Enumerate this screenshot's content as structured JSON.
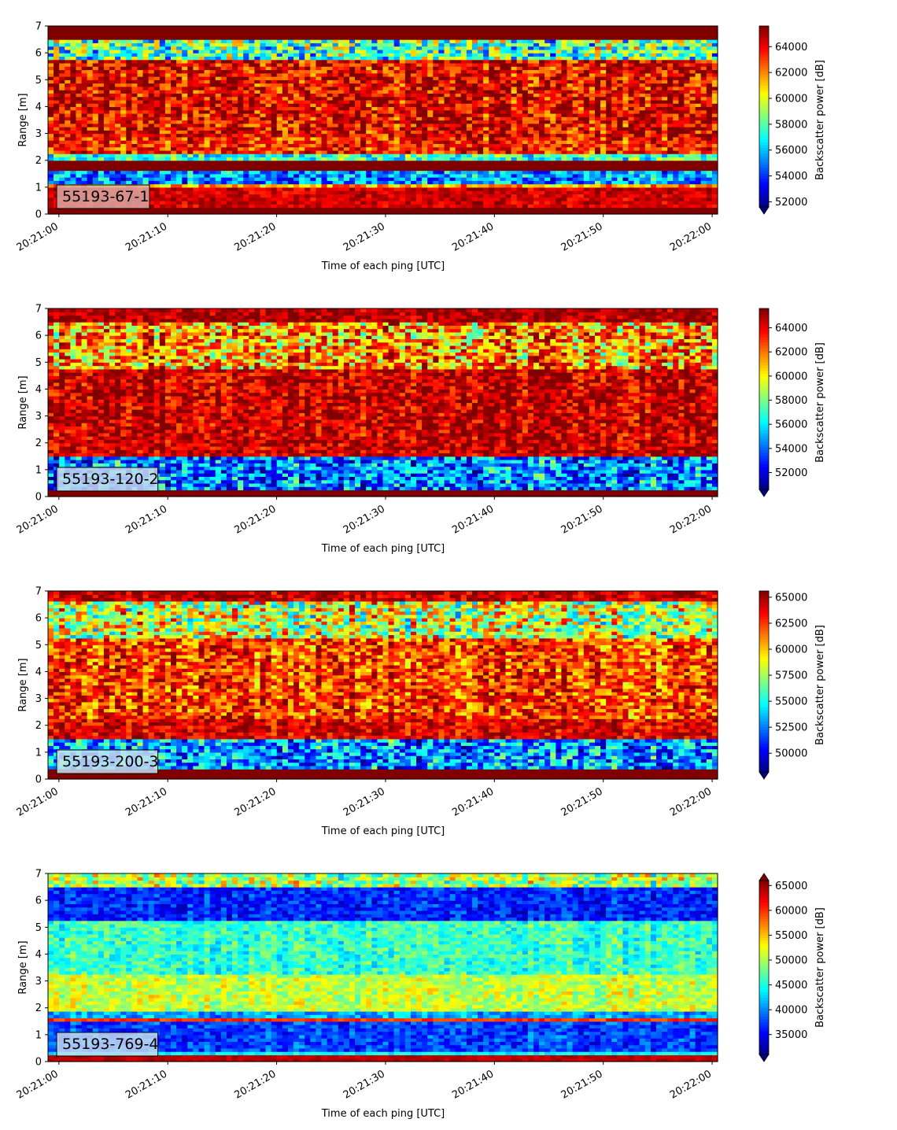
{
  "chart_data": [
    {
      "type": "heatmap",
      "id": "55193-67-1",
      "annotation": "55193-67-1",
      "xlabel": "Time of each ping [UTC]",
      "ylabel": "Range [m]",
      "colorbar_label": "Backscatter power [dB]",
      "x_ticks": [
        "20:21:00",
        "20:21:10",
        "20:21:20",
        "20:21:30",
        "20:21:40",
        "20:21:50",
        "20:22:00"
      ],
      "x_range_seconds": [
        -1,
        60.5
      ],
      "y_ticks": [
        0,
        1,
        2,
        3,
        4,
        5,
        6,
        7
      ],
      "ylim": [
        0,
        7
      ],
      "colorbar_ticks": [
        52000,
        54000,
        56000,
        58000,
        60000,
        62000,
        64000
      ],
      "clim": [
        51600,
        65600
      ],
      "colorbar_extend": "min",
      "annotation_bg": "#d9a8a3",
      "bands": [
        {
          "y": [
            0.0,
            0.25
          ],
          "value": 65600
        },
        {
          "y": [
            0.25,
            1.0
          ],
          "value": 64500,
          "jitter": 1500
        },
        {
          "y": [
            1.0,
            1.15
          ],
          "value": 61500,
          "jitter": 2500
        },
        {
          "y": [
            1.15,
            1.6
          ],
          "value": 55500,
          "jitter": 3500
        },
        {
          "y": [
            1.6,
            2.05
          ],
          "value": 65600
        },
        {
          "y": [
            2.05,
            2.2
          ],
          "value": 57500,
          "jitter": 3000
        },
        {
          "y": [
            2.2,
            2.9
          ],
          "value": 63500,
          "jitter": 3000
        },
        {
          "y": [
            2.9,
            5.8
          ],
          "value": 64200,
          "jitter": 3500
        },
        {
          "y": [
            5.8,
            6.5
          ],
          "value": 58000,
          "jitter": 5000
        },
        {
          "y": [
            6.5,
            7.0
          ],
          "value": 65600
        }
      ]
    },
    {
      "type": "heatmap",
      "id": "55193-120-2",
      "annotation": "55193-120-2",
      "xlabel": "Time of each ping [UTC]",
      "ylabel": "Range [m]",
      "colorbar_label": "Backscatter power [dB]",
      "x_ticks": [
        "20:21:00",
        "20:21:10",
        "20:21:20",
        "20:21:30",
        "20:21:40",
        "20:21:50",
        "20:22:00"
      ],
      "x_range_seconds": [
        -1,
        60.5
      ],
      "y_ticks": [
        0,
        1,
        2,
        3,
        4,
        5,
        6,
        7
      ],
      "ylim": [
        0,
        7
      ],
      "colorbar_ticks": [
        52000,
        54000,
        56000,
        58000,
        60000,
        62000,
        64000
      ],
      "clim": [
        50600,
        65600
      ],
      "colorbar_extend": "min",
      "annotation_bg": "#c9d8ef",
      "bands": [
        {
          "y": [
            0.0,
            0.2
          ],
          "value": 65600
        },
        {
          "y": [
            0.2,
            1.45
          ],
          "value": 54500,
          "jitter": 4500
        },
        {
          "y": [
            1.45,
            2.2
          ],
          "value": 64500,
          "jitter": 2500
        },
        {
          "y": [
            2.2,
            4.8
          ],
          "value": 64600,
          "jitter": 3000
        },
        {
          "y": [
            4.8,
            6.5
          ],
          "value": 61500,
          "jitter": 5500
        },
        {
          "y": [
            6.5,
            7.0
          ],
          "value": 65000,
          "jitter": 2000
        }
      ]
    },
    {
      "type": "heatmap",
      "id": "55193-200-3",
      "annotation": "55193-200-3",
      "xlabel": "Time of each ping [UTC]",
      "ylabel": "Range [m]",
      "colorbar_label": "Backscatter power [dB]",
      "x_ticks": [
        "20:21:00",
        "20:21:10",
        "20:21:20",
        "20:21:30",
        "20:21:40",
        "20:21:50",
        "20:22:00"
      ],
      "x_range_seconds": [
        -1,
        60.5
      ],
      "y_ticks": [
        0,
        1,
        2,
        3,
        4,
        5,
        6,
        7
      ],
      "ylim": [
        0,
        7
      ],
      "colorbar_ticks": [
        50000,
        52500,
        55000,
        57500,
        60000,
        62500,
        65000
      ],
      "clim": [
        48200,
        65600
      ],
      "colorbar_extend": "min",
      "annotation_bg": "#c8e2f0",
      "bands": [
        {
          "y": [
            0.0,
            0.35
          ],
          "value": 65600
        },
        {
          "y": [
            0.35,
            1.45
          ],
          "value": 53000,
          "jitter": 5500
        },
        {
          "y": [
            1.45,
            2.3
          ],
          "value": 64000,
          "jitter": 3000
        },
        {
          "y": [
            2.3,
            5.2
          ],
          "value": 62500,
          "jitter": 4500
        },
        {
          "y": [
            5.2,
            6.6
          ],
          "value": 58500,
          "jitter": 6500
        },
        {
          "y": [
            6.6,
            7.0
          ],
          "value": 64500,
          "jitter": 2500
        }
      ]
    },
    {
      "type": "heatmap",
      "id": "55193-769-4",
      "annotation": "55193-769-4",
      "xlabel": "Time of each ping [UTC]",
      "ylabel": "Range [m]",
      "colorbar_label": "Backscatter power [dB]",
      "x_ticks": [
        "20:21:00",
        "20:21:10",
        "20:21:20",
        "20:21:30",
        "20:21:40",
        "20:21:50",
        "20:22:00"
      ],
      "x_range_seconds": [
        -1,
        60.5
      ],
      "y_ticks": [
        0,
        1,
        2,
        3,
        4,
        5,
        6,
        7
      ],
      "ylim": [
        0,
        7
      ],
      "colorbar_ticks": [
        35000,
        40000,
        45000,
        50000,
        55000,
        60000,
        65000
      ],
      "clim": [
        31000,
        66000
      ],
      "colorbar_extend": "both",
      "annotation_bg": "#c4dcf2",
      "bands": [
        {
          "y": [
            0.0,
            0.2
          ],
          "value": 64000,
          "jitter": 1500
        },
        {
          "y": [
            0.2,
            0.35
          ],
          "value": 44000,
          "jitter": 2500
        },
        {
          "y": [
            0.35,
            1.45
          ],
          "value": 37500,
          "jitter": 4500
        },
        {
          "y": [
            1.45,
            1.6
          ],
          "value": 60000,
          "jitter": 3000
        },
        {
          "y": [
            1.6,
            1.9
          ],
          "value": 41000,
          "jitter": 5000
        },
        {
          "y": [
            1.9,
            3.2
          ],
          "value": 51000,
          "jitter": 5000
        },
        {
          "y": [
            3.2,
            5.2
          ],
          "value": 46000,
          "jitter": 5000
        },
        {
          "y": [
            5.2,
            6.5
          ],
          "value": 36500,
          "jitter": 4500
        },
        {
          "y": [
            6.5,
            7.0
          ],
          "value": 50000,
          "jitter": 9000
        }
      ]
    }
  ]
}
